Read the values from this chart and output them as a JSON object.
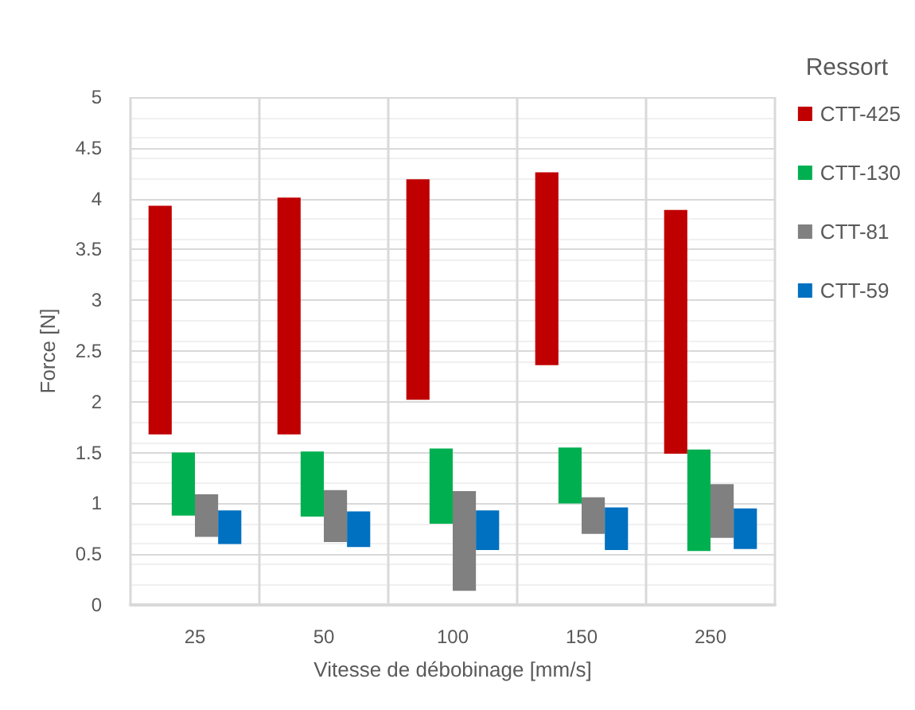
{
  "chart_data": {
    "type": "bar",
    "xlabel": "Vitesse de débobinage [mm/s]",
    "ylabel": "Force [N]",
    "legend_title": "Ressort",
    "categories": [
      "25",
      "50",
      "100",
      "150",
      "250"
    ],
    "series": [
      {
        "name": "CTT-425",
        "color": "#c00000",
        "base": [
          1.68,
          1.68,
          2.02,
          2.36,
          1.49
        ],
        "values": [
          2.25,
          2.33,
          2.17,
          1.9,
          2.4
        ]
      },
      {
        "name": "CTT-130",
        "color": "#00b050",
        "base": [
          0.88,
          0.87,
          0.8,
          1.0,
          0.53
        ],
        "values": [
          0.62,
          0.64,
          0.74,
          0.55,
          1.0
        ]
      },
      {
        "name": "CTT-81",
        "color": "#808080",
        "base": [
          0.67,
          0.62,
          0.14,
          0.7,
          0.66
        ],
        "values": [
          0.42,
          0.51,
          0.98,
          0.36,
          0.53
        ]
      },
      {
        "name": "CTT-59",
        "color": "#0070c0",
        "base": [
          0.6,
          0.57,
          0.54,
          0.54,
          0.55
        ],
        "values": [
          0.33,
          0.35,
          0.39,
          0.42,
          0.4
        ]
      }
    ],
    "ylim": [
      0,
      5
    ],
    "yticks": [
      0,
      0.5,
      1,
      1.5,
      2,
      2.5,
      3,
      3.5,
      4,
      4.5,
      5
    ],
    "grid": true,
    "legend": "right"
  }
}
